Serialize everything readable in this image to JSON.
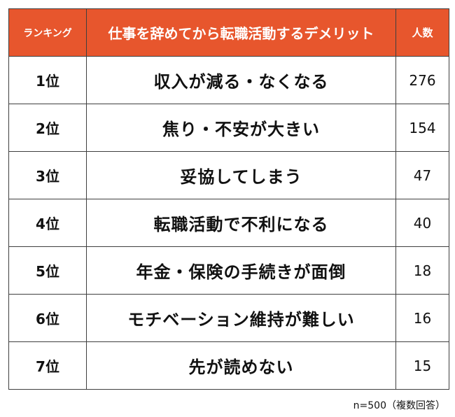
{
  "header": {
    "rank": "ランキング",
    "item": "仕事を辞めてから転職活動するデメリット",
    "count": "人数"
  },
  "rows": [
    {
      "rank": "1位",
      "item": "収入が減る・なくなる",
      "count": "276"
    },
    {
      "rank": "2位",
      "item": "焦り・不安が大きい",
      "count": "154"
    },
    {
      "rank": "3位",
      "item": "妥協してしまう",
      "count": "47"
    },
    {
      "rank": "4位",
      "item": "転職活動で不利になる",
      "count": "40"
    },
    {
      "rank": "5位",
      "item": "年金・保険の手続きが面倒",
      "count": "18"
    },
    {
      "rank": "6位",
      "item": "モチベーション維持が難しい",
      "count": "16"
    },
    {
      "rank": "7位",
      "item": "先が読めない",
      "count": "15"
    }
  ],
  "note": "n=500（複数回答）",
  "colors": {
    "header_bg": "#e7562d",
    "header_text": "#ffffff",
    "border": "#3f3f3f"
  }
}
